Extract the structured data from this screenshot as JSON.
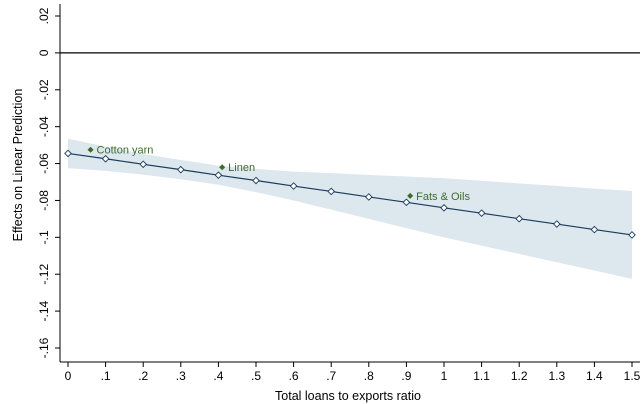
{
  "chart_data": {
    "type": "line",
    "title": "",
    "xlabel": "Total loans to exports ratio",
    "ylabel": "Effects on Linear Prediction",
    "xlim": [
      0,
      1.5
    ],
    "ylim": [
      -0.16,
      0.02
    ],
    "x_ticks": [
      0,
      0.1,
      0.2,
      0.3,
      0.4,
      0.5,
      0.6,
      0.7,
      0.8,
      0.9,
      1.0,
      1.1,
      1.2,
      1.3,
      1.4,
      1.5
    ],
    "x_tick_labels": [
      "0",
      ".1",
      ".2",
      ".3",
      ".4",
      ".5",
      ".6",
      ".7",
      ".8",
      ".9",
      "1",
      "1.1",
      "1.2",
      "1.3",
      "1.4",
      "1.5"
    ],
    "y_ticks": [
      0.02,
      0,
      -0.02,
      -0.04,
      -0.06,
      -0.08,
      -0.1,
      -0.12,
      -0.14,
      -0.16
    ],
    "y_tick_labels": [
      ".02",
      "0",
      "-.02",
      "-.04",
      "-.06",
      "-.08",
      "-.1",
      "-.12",
      "-.14",
      "-.16"
    ],
    "reference_line_y": 0,
    "grid": false,
    "series": {
      "x": [
        0,
        0.1,
        0.2,
        0.3,
        0.4,
        0.5,
        0.6,
        0.7,
        0.8,
        0.9,
        1.0,
        1.1,
        1.2,
        1.3,
        1.4,
        1.5
      ],
      "values": [
        -0.0545,
        -0.0574,
        -0.0604,
        -0.0633,
        -0.0663,
        -0.0692,
        -0.0722,
        -0.0751,
        -0.0781,
        -0.081,
        -0.084,
        -0.0869,
        -0.0899,
        -0.0928,
        -0.0958,
        -0.0987
      ],
      "ci_lower": [
        -0.0625,
        -0.064,
        -0.066,
        -0.0685,
        -0.0715,
        -0.0755,
        -0.08,
        -0.085,
        -0.09,
        -0.095,
        -0.1,
        -0.1045,
        -0.109,
        -0.1135,
        -0.118,
        -0.1225
      ],
      "ci_upper": [
        -0.0465,
        -0.0508,
        -0.0548,
        -0.0581,
        -0.0611,
        -0.0629,
        -0.0644,
        -0.0652,
        -0.0662,
        -0.067,
        -0.068,
        -0.0693,
        -0.0708,
        -0.0721,
        -0.0736,
        -0.0749
      ]
    },
    "annotations": [
      {
        "label": "Cotton yarn",
        "x": 0.06,
        "y": -0.0525
      },
      {
        "label": "Linen",
        "x": 0.41,
        "y": -0.062
      },
      {
        "label": "Fats & Oils",
        "x": 0.91,
        "y": -0.0775
      }
    ],
    "colors": {
      "line": "#1a3a5c",
      "band": "#dde7ee",
      "marker_fill": "#ffffff",
      "annotation": "#3d6b2a"
    }
  }
}
